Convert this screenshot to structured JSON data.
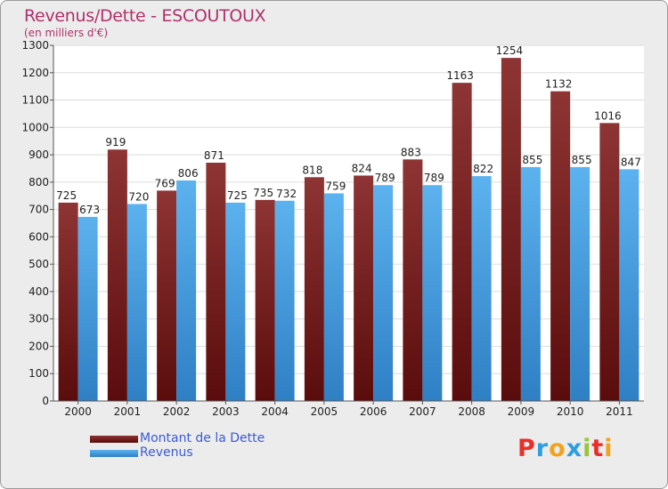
{
  "chart": {
    "title": "Revenus/Dette - ESCOUTOUX",
    "subtitle": "(en milliers d'€)"
  },
  "chart_data": {
    "type": "bar",
    "title": "Revenus/Dette - ESCOUTOUX",
    "subtitle": "(en milliers d'€)",
    "xlabel": "",
    "ylabel": "",
    "ylim": [
      0,
      1300
    ],
    "yticks": [
      0,
      100,
      200,
      300,
      400,
      500,
      600,
      700,
      800,
      900,
      1000,
      1100,
      1200,
      1300
    ],
    "grid": true,
    "categories": [
      "2000",
      "2001",
      "2002",
      "2003",
      "2004",
      "2005",
      "2006",
      "2007",
      "2008",
      "2009",
      "2010",
      "2011"
    ],
    "series": [
      {
        "name": "Montant de la Dette",
        "color": "#7a1a1a",
        "values": [
          725,
          919,
          769,
          871,
          735,
          818,
          824,
          883,
          1163,
          1254,
          1132,
          1016
        ]
      },
      {
        "name": "Revenus",
        "color": "#4aa3e6",
        "values": [
          673,
          720,
          806,
          725,
          732,
          759,
          789,
          789,
          822,
          855,
          855,
          847
        ]
      }
    ],
    "legend_position": "bottom-left"
  },
  "logo": {
    "letters": [
      "P",
      "r",
      "o",
      "x",
      "i",
      "t",
      "i"
    ],
    "colors": [
      "#e8302a",
      "#2e9ee0",
      "#f2a21c",
      "#2e9ee0",
      "#9ac43a",
      "#e8302a",
      "#f2a21c"
    ]
  }
}
